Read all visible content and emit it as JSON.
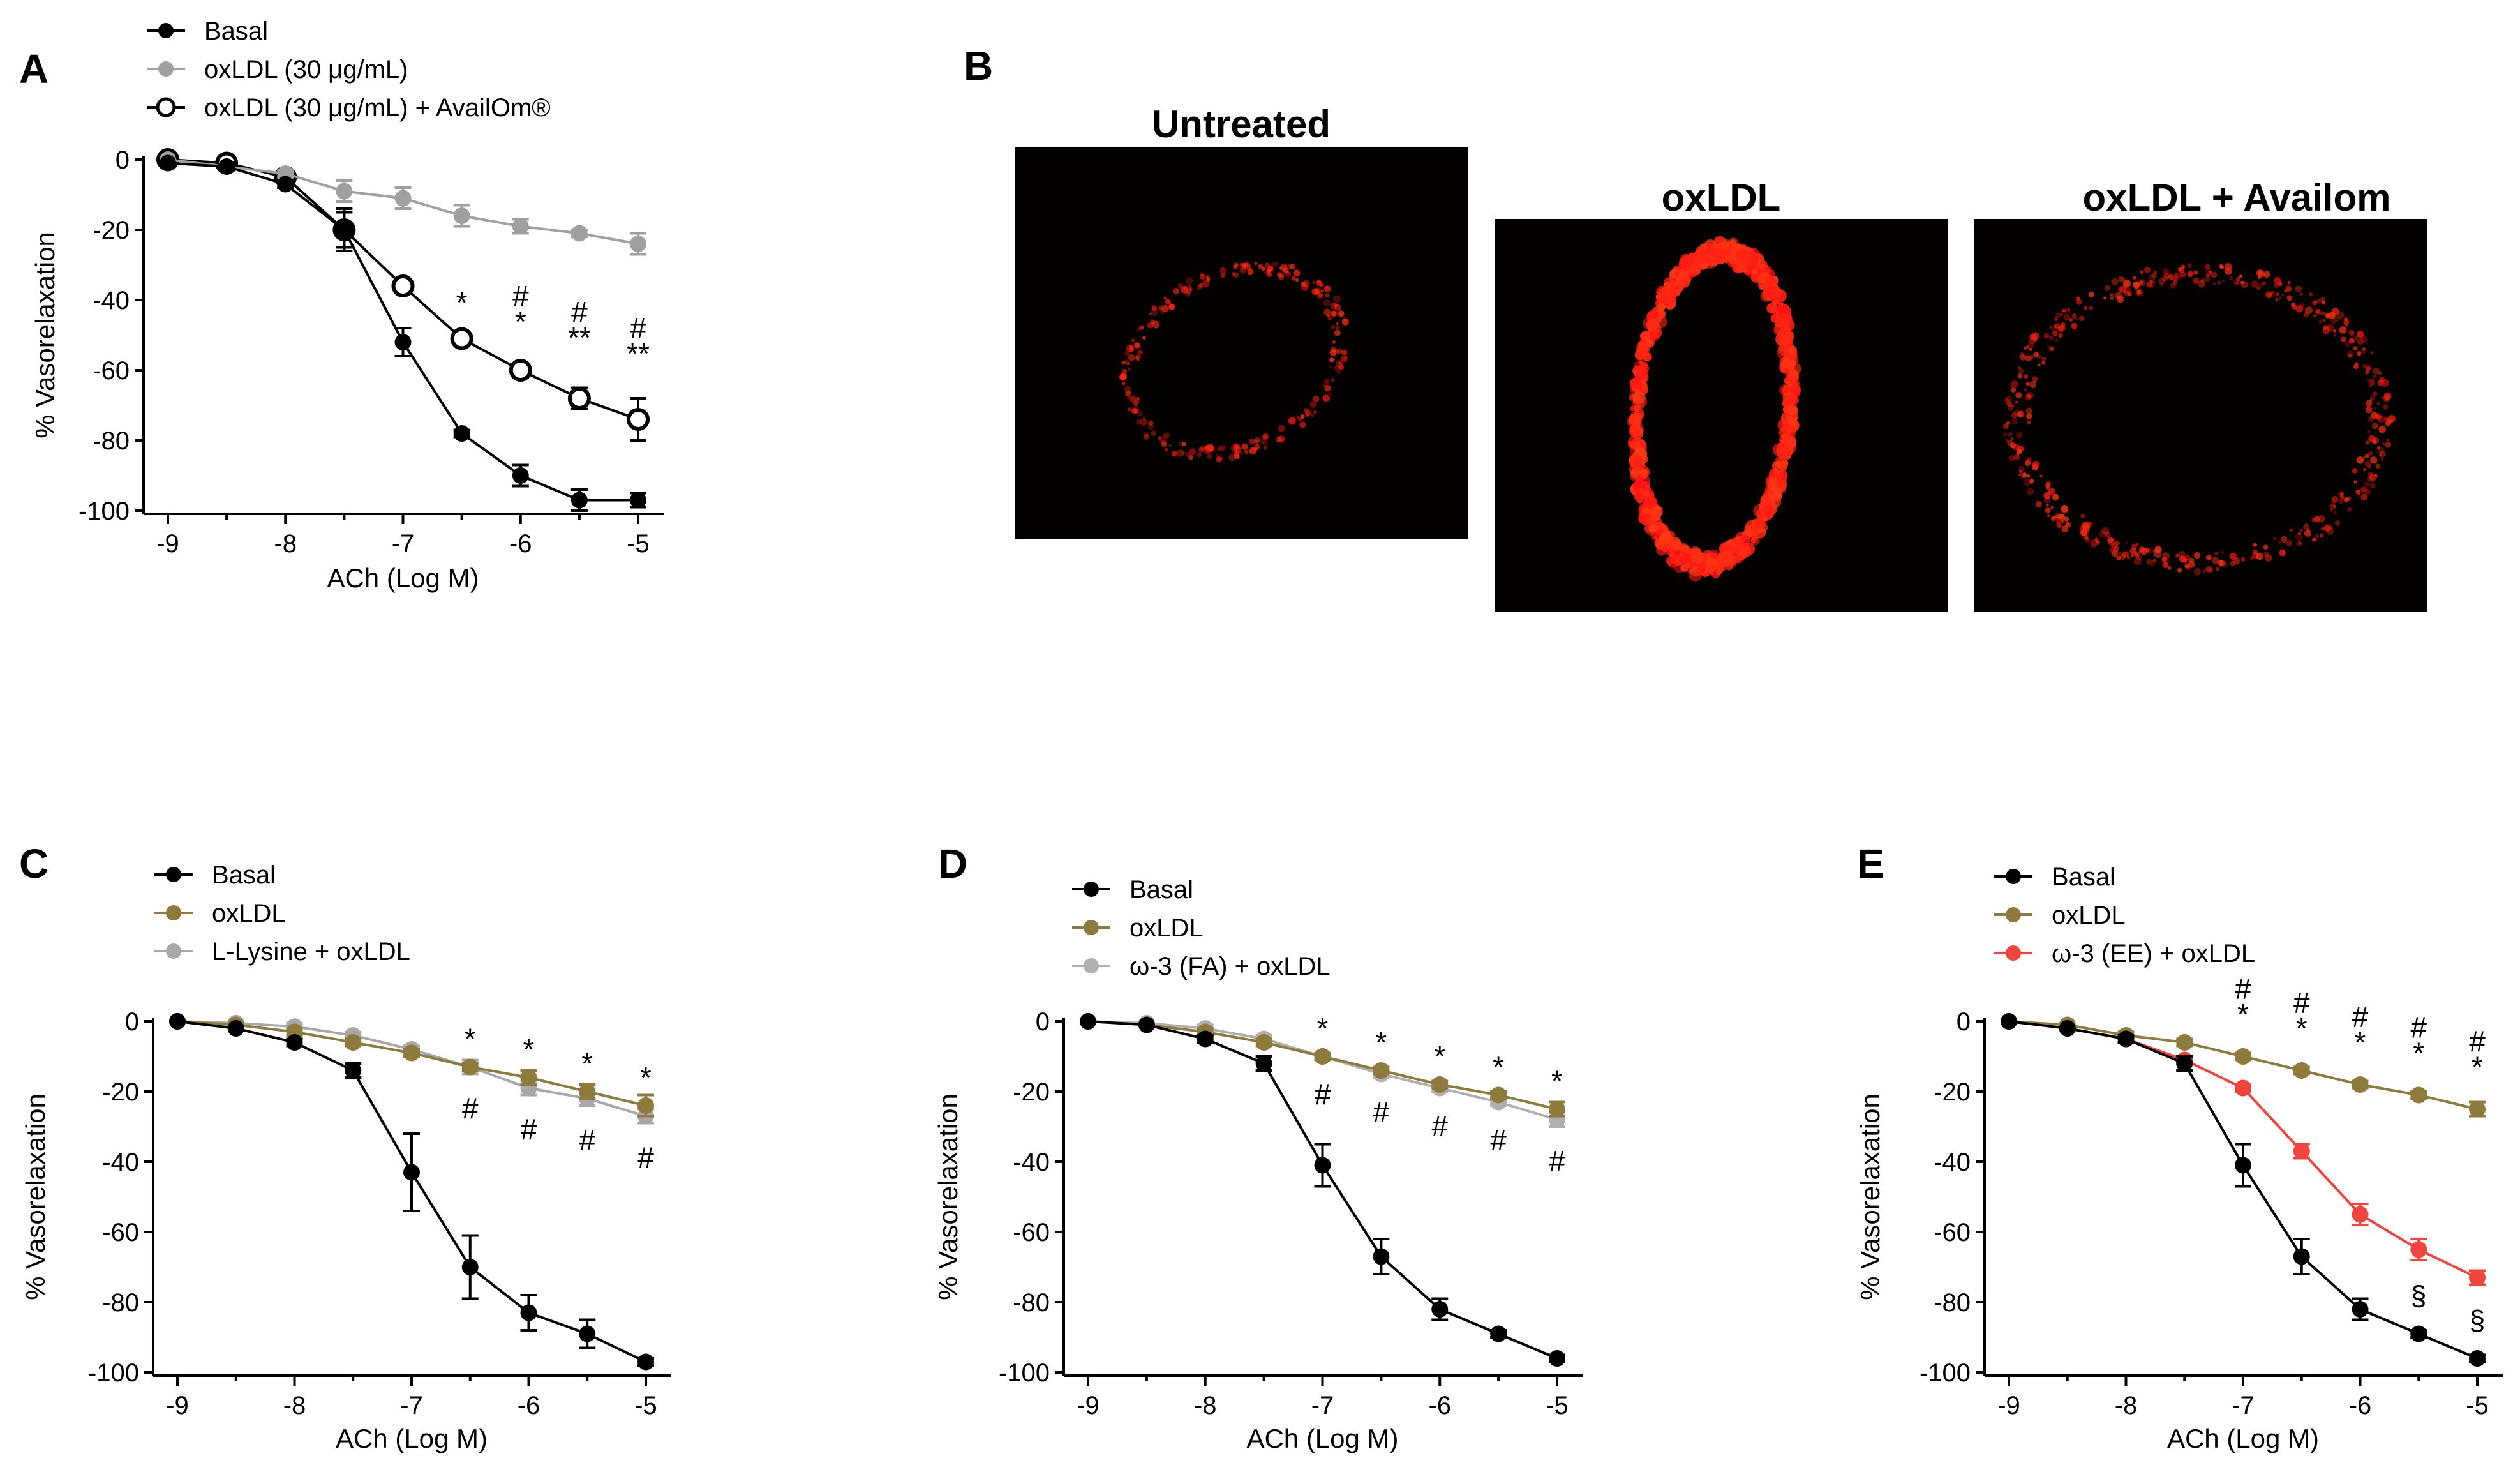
{
  "colors": {
    "basal": "#000000",
    "oxldl_grey": "#a0a0a0",
    "oxldl_gold": "#8c7b3d",
    "lysine": "#a8a8a8",
    "fa": "#b0b0b0",
    "ee": "#f0453f"
  },
  "panel_b": {
    "letter": "B",
    "images": [
      {
        "label": "Untreated",
        "intensity": "low"
      },
      {
        "label": "oxLDL",
        "intensity": "high"
      },
      {
        "label": "oxLDL + Availom",
        "intensity": "medium"
      }
    ]
  },
  "chart_data": [
    {
      "panel": "A",
      "type": "line",
      "xlabel": "ACh (Log M)",
      "ylabel": "% Vasorelaxation",
      "xlim": [
        -9,
        -5
      ],
      "ylim": [
        -100,
        0
      ],
      "xticks": [
        "-9",
        "-8",
        "-7",
        "-6",
        "-5"
      ],
      "yticks": [
        "0",
        "-20",
        "-40",
        "-60",
        "-80",
        "-100"
      ],
      "x": [
        -9,
        -8.5,
        -8,
        -7.5,
        -7,
        -6.5,
        -6,
        -5.5,
        -5
      ],
      "legend_position": "top-left",
      "series": [
        {
          "name": "Basal",
          "marker": "filled",
          "color": "#000000",
          "values": [
            -1,
            -2,
            -7,
            -20,
            -52,
            -78,
            -90,
            -97,
            -97
          ],
          "errors": [
            0.5,
            0.5,
            1,
            6,
            4,
            1,
            3,
            3,
            2
          ]
        },
        {
          "name": "oxLDL (30 μg/mL)",
          "marker": "filled",
          "color": "#a0a0a0",
          "values": [
            0,
            -2,
            -4,
            -9,
            -11,
            -16,
            -19,
            -21,
            -24
          ],
          "errors": [
            0.5,
            0.5,
            1,
            3,
            3,
            3,
            2,
            1,
            3
          ]
        },
        {
          "name": "oxLDL (30 μg/mL) + AvailOm®",
          "marker": "open",
          "color": "#000000",
          "values": [
            0,
            -1,
            -5,
            -20,
            -36,
            -51,
            -60,
            -68,
            -74
          ],
          "errors": [
            0.5,
            0.5,
            1,
            5,
            2,
            2,
            2,
            3,
            6
          ]
        }
      ],
      "annotations": [
        {
          "x": -6.5,
          "lines": [
            "*"
          ]
        },
        {
          "x": -6,
          "lines": [
            "#",
            "*"
          ]
        },
        {
          "x": -5.5,
          "lines": [
            "#",
            "**"
          ]
        },
        {
          "x": -5,
          "lines": [
            "#",
            "**"
          ]
        }
      ]
    },
    {
      "panel": "C",
      "type": "line",
      "xlabel": "ACh (Log M)",
      "ylabel": "% Vasorelaxation",
      "xlim": [
        -9,
        -5
      ],
      "ylim": [
        -100,
        0
      ],
      "xticks": [
        "-9",
        "-8",
        "-7",
        "-6",
        "-5"
      ],
      "yticks": [
        "0",
        "-20",
        "-40",
        "-60",
        "-80",
        "-100"
      ],
      "x": [
        -9,
        -8.5,
        -8,
        -7.5,
        -7,
        -6.5,
        -6,
        -5.5,
        -5
      ],
      "legend_position": "top-left",
      "series": [
        {
          "name": "Basal",
          "marker": "filled",
          "color": "#000000",
          "values": [
            0,
            -2,
            -6,
            -14,
            -43,
            -70,
            -83,
            -89,
            -97
          ],
          "errors": [
            0.5,
            0.5,
            1,
            2,
            11,
            9,
            5,
            4,
            1
          ]
        },
        {
          "name": "oxLDL",
          "marker": "filled",
          "color": "#8c7b3d",
          "values": [
            0,
            -1,
            -3,
            -6,
            -9,
            -13,
            -16,
            -20,
            -24
          ],
          "errors": [
            0.5,
            0.5,
            1,
            1,
            1,
            1,
            2,
            2,
            3
          ]
        },
        {
          "name": "L-Lysine + oxLDL",
          "marker": "filled",
          "color": "#a8a8a8",
          "values": [
            0,
            -0.5,
            -1.5,
            -4,
            -8,
            -13,
            -19,
            -22,
            -27
          ],
          "errors": [
            0.5,
            0.5,
            1,
            1,
            1,
            2,
            2,
            2,
            2
          ]
        }
      ],
      "annotations": [
        {
          "x": -6.5,
          "lines": [
            "*",
            "#"
          ]
        },
        {
          "x": -6,
          "lines": [
            "*",
            "#"
          ]
        },
        {
          "x": -5.5,
          "lines": [
            "*",
            "#"
          ]
        },
        {
          "x": -5,
          "lines": [
            "*",
            "#"
          ]
        }
      ]
    },
    {
      "panel": "D",
      "type": "line",
      "xlabel": "ACh (Log M)",
      "ylabel": "% Vasorelaxation",
      "xlim": [
        -9,
        -5
      ],
      "ylim": [
        -100,
        0
      ],
      "xticks": [
        "-9",
        "-8",
        "-7",
        "-6",
        "-5"
      ],
      "yticks": [
        "0",
        "-20",
        "-40",
        "-60",
        "-80",
        "-100"
      ],
      "x": [
        -9,
        -8.5,
        -8,
        -7.5,
        -7,
        -6.5,
        -6,
        -5.5,
        -5
      ],
      "legend_position": "top-left",
      "series": [
        {
          "name": "Basal",
          "marker": "filled",
          "color": "#000000",
          "values": [
            0,
            -1,
            -5,
            -12,
            -41,
            -67,
            -82,
            -89,
            -96
          ],
          "errors": [
            0.5,
            0.5,
            1,
            2,
            6,
            5,
            3,
            1,
            1
          ]
        },
        {
          "name": "oxLDL",
          "marker": "filled",
          "color": "#8c7b3d",
          "values": [
            0,
            -1,
            -3,
            -6,
            -10,
            -14,
            -18,
            -21,
            -25
          ],
          "errors": [
            0.5,
            0.5,
            1,
            1,
            1,
            1,
            1,
            1,
            2
          ]
        },
        {
          "name": "ω-3 (FA) + oxLDL",
          "marker": "filled",
          "color": "#b0b0b0",
          "values": [
            0,
            -0.5,
            -2,
            -5,
            -10,
            -15,
            -19,
            -23,
            -28
          ],
          "errors": [
            0.5,
            0.5,
            1,
            1,
            1,
            1,
            1,
            1,
            2
          ]
        }
      ],
      "annotations": [
        {
          "x": -7,
          "lines": [
            "*",
            "#"
          ]
        },
        {
          "x": -6.5,
          "lines": [
            "*",
            "#"
          ]
        },
        {
          "x": -6,
          "lines": [
            "*",
            "#"
          ]
        },
        {
          "x": -5.5,
          "lines": [
            "*",
            "#"
          ]
        },
        {
          "x": -5,
          "lines": [
            "*",
            "#"
          ]
        }
      ]
    },
    {
      "panel": "E",
      "type": "line",
      "xlabel": "ACh (Log M)",
      "ylabel": "% Vasorelaxation",
      "xlim": [
        -9,
        -5
      ],
      "ylim": [
        -100,
        0
      ],
      "xticks": [
        "-9",
        "-8",
        "-7",
        "-6",
        "-5"
      ],
      "yticks": [
        "0",
        "-20",
        "-40",
        "-60",
        "-80",
        "-100"
      ],
      "x": [
        -9,
        -8.5,
        -8,
        -7.5,
        -7,
        -6.5,
        -6,
        -5.5,
        -5
      ],
      "legend_position": "top-left",
      "series": [
        {
          "name": "Basal",
          "marker": "filled",
          "color": "#000000",
          "values": [
            0,
            -2,
            -5,
            -12,
            -41,
            -67,
            -82,
            -89,
            -96
          ],
          "errors": [
            0.5,
            0.5,
            1,
            2,
            6,
            5,
            3,
            1,
            1
          ]
        },
        {
          "name": "oxLDL",
          "marker": "filled",
          "color": "#8c7b3d",
          "values": [
            0,
            -1,
            -4,
            -6,
            -10,
            -14,
            -18,
            -21,
            -25
          ],
          "errors": [
            0.5,
            0.5,
            1,
            1,
            1,
            1,
            1,
            1,
            2
          ]
        },
        {
          "name": "ω-3 (EE) + oxLDL",
          "marker": "filled",
          "color": "#f0453f",
          "values": [
            0,
            -2,
            -5,
            -11,
            -19,
            -37,
            -55,
            -65,
            -73
          ],
          "errors": [
            0.5,
            0.5,
            1,
            1,
            1,
            2,
            3,
            3,
            2
          ]
        }
      ],
      "annotations": [
        {
          "x": -7,
          "lines": [
            "#",
            "*"
          ]
        },
        {
          "x": -6.5,
          "lines": [
            "#",
            "*"
          ]
        },
        {
          "x": -6,
          "lines": [
            "#",
            "*"
          ]
        },
        {
          "x": -5.5,
          "lines": [
            "#",
            "*"
          ]
        },
        {
          "x": -5,
          "lines": [
            "#",
            "*"
          ]
        }
      ],
      "below_annotations": [
        {
          "x": -5.5,
          "text": "§"
        },
        {
          "x": -5,
          "text": "§"
        }
      ]
    }
  ]
}
